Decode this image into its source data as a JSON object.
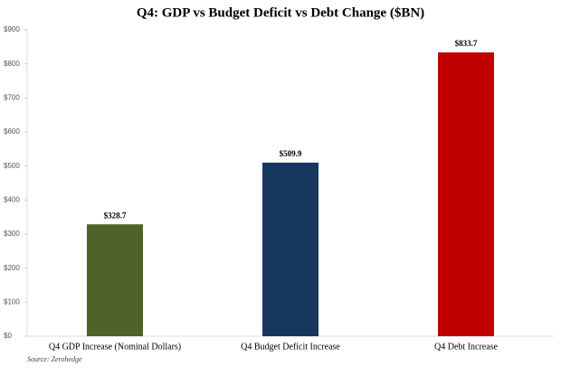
{
  "chart_data": {
    "type": "bar",
    "title": "Q4: GDP vs Budget Deficit vs Debt Change ($BN)",
    "categories": [
      "Q4 GDP Increase (Nominal Dollars)",
      "Q4 Budget Deficit Increase",
      "Q4 Debt Increase"
    ],
    "values": [
      328.7,
      509.9,
      833.7
    ],
    "value_labels": [
      "$328.7",
      "$509.9",
      "$833.7"
    ],
    "colors": [
      "#4f6228",
      "#17375e",
      "#c00000"
    ],
    "ylim": [
      0,
      900
    ],
    "yticks": [
      {
        "value": 0,
        "label": "$0"
      },
      {
        "value": 100,
        "label": "$100"
      },
      {
        "value": 200,
        "label": "$200"
      },
      {
        "value": 300,
        "label": "$300"
      },
      {
        "value": 400,
        "label": "$400"
      },
      {
        "value": 500,
        "label": "$500"
      },
      {
        "value": 600,
        "label": "$600"
      },
      {
        "value": 700,
        "label": "$700"
      },
      {
        "value": 800,
        "label": "$800"
      },
      {
        "value": 900,
        "label": "$900"
      }
    ],
    "source": "Source: Zerohedge",
    "grid": false
  }
}
